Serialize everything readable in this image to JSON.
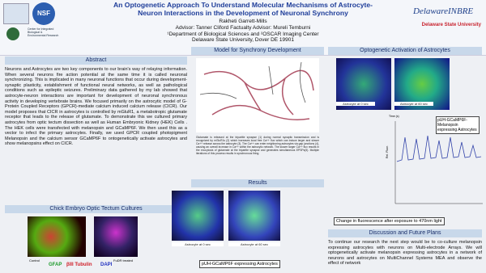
{
  "header": {
    "title_lines": [
      "An Optogenetic Approach To Understand Molecular Mechanisms of Astrocyte-",
      "Neuron Interactions in the Development of Neuronal Synchrony"
    ],
    "author": "Rakheti Garrett-Mills",
    "advisors": "Advisor: Tanner Cliford Factualty Advisor: Mureli Temburni",
    "affiliation": "¹Department of Biological Sciences and ²OSCAR Imaging Center",
    "university": "Delaware State University, Dover DE 19901",
    "logos": {
      "nsf": "NSF",
      "cibr": "Center for Integrated Biological & Environmental Research",
      "inbre": "DelawareINBRE",
      "dsu": "Delaware State University"
    }
  },
  "abstract": {
    "title": "Abstract",
    "text": "Neurons and Astrocytes are two key components to our brain's way of relaying information. When several neurons fire action potential at the same time it is called neuronal synchronizing. This is implicated in many neuronal functions that occur during development- synaptic plasticity, establishment of functional neural networks, as well as pathological conditions such as epileptic seizures. Preliminary data gathered by my lab showed that astrocyte-neuron interactions are important for development of neuronal synchronous activity in developing vertebrate brains. We focused primarily on the astrocytic model of G-Protein Coupled Receptors (GPCR)-mediate calcium induced calcium release (CICR). Our model proposes that CICR in astrocytes is controlled by mGluR1, a metabotropic glutamate receptor that leads to the release of glutamate. To demonstrate this we cultured primary astrocytes from optic tectum dissection as well as Human Embryonic Kidney (HEK) Cells . The HEK cells were transfected with melanopsin and GCaMP6F. We then used this as a vector to infect the primary astrocytes. Finally, we used GPCR coupled photopigment Melanopsin and the calcium sensor GCaMP6F to ontogenetically activate astrocytes and show melanopsins effect on CICR."
  },
  "model": {
    "title": "Model for Synchrony Development",
    "caption": "Glutamate is released at the tripartite synapse (1) during normal synaptic transmission and is recognized by mGluR1s (2) which increases local free Ca++ flux which can induce larger and slower Ca++ release across the astrocyte (3). The Ca++ can enter neighboring astrocytes via gap junctions (4), causing an overall increase in Ca++ within the astrocytic network. The slower larger Ca++ flux results in the exocytosis of glutamate at the tripartite synapse and generates simultaneous EPSPs(5). Multiple iterations of this process results in synchronous firing."
  },
  "optogenetic": {
    "title": "Optogenetic Activation of Astrocytes",
    "image_labels": [
      "Astrocyte at 0 sec",
      "Astrocyte at 60 sec"
    ],
    "x_label": "Time (s)",
    "y_label": "Rel. Fluor.",
    "legend": "pUH-GCaMP6F-Melanopsin expressing Astrocytes",
    "caption": "Change in fluorescence after exposure to 470nm light"
  },
  "chick": {
    "title": "Chick Embryo Optic Tectum  Cultures",
    "labels": [
      "Control",
      "GFAP",
      "βIII Tubulin",
      "DAPI",
      "FuDR treated"
    ]
  },
  "results": {
    "title": "Results",
    "image_labels": [
      "Astrocyte at 0 sec",
      "Astrocyte at 60 sec"
    ],
    "legend": "pUH-GCaMP6F expressing Astrocytes"
  },
  "discussion": {
    "title": "Discussion and Future Plans",
    "text": "To continue our research the next step would be to co-culture melanopsin expressing astrocytes with neurons on Multi-electrode Arrays. We will optogenetically activate melanopsin expressing astrocytes in a network of neurons and astrocytes on MultiChannel Systems MEA and observe the effect of network"
  }
}
